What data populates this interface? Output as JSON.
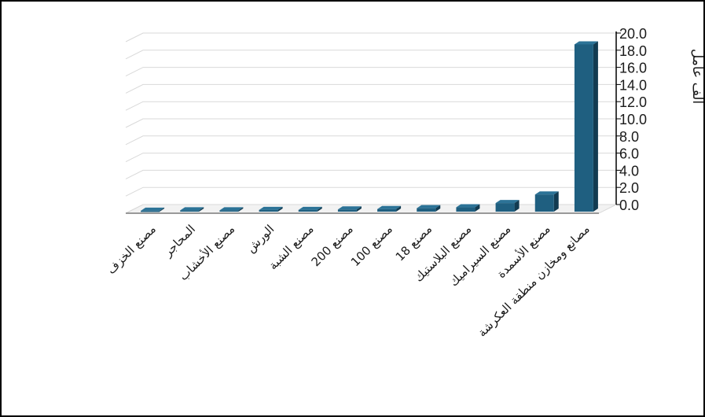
{
  "chart_data": {
    "type": "bar",
    "style": "3d-column",
    "ylabel": "ألف عامل",
    "ylim": [
      0,
      20
    ],
    "yticks": [
      "0.0",
      "2.0",
      "4.0",
      "6.0",
      "8.0",
      "10.0",
      "12.0",
      "14.0",
      "16.0",
      "18.0",
      "20.0"
    ],
    "y_axis_position": "right",
    "grid": true,
    "legend": "none",
    "categories": [
      "مصنع الخزف",
      "المحاجر",
      "مصنع الأخشاب",
      "الورش",
      "مصنع الشبة",
      "مصنع 200",
      "مصنع 100",
      "مصنع 18",
      "مصنع البلاستيك",
      "مصنع السيراميك",
      "مصنع الأسمدة",
      "مصانع ومخازن منطقة العكرشة"
    ],
    "values": [
      0.1,
      0.15,
      0.15,
      0.2,
      0.2,
      0.25,
      0.3,
      0.4,
      0.5,
      1.0,
      2.0,
      19.5
    ],
    "colors": {
      "bar_front": "#1f5f80",
      "bar_side": "#123b51",
      "bar_top": "#2c7397",
      "grid": "#d9d9d9",
      "axis": "#000000"
    }
  }
}
